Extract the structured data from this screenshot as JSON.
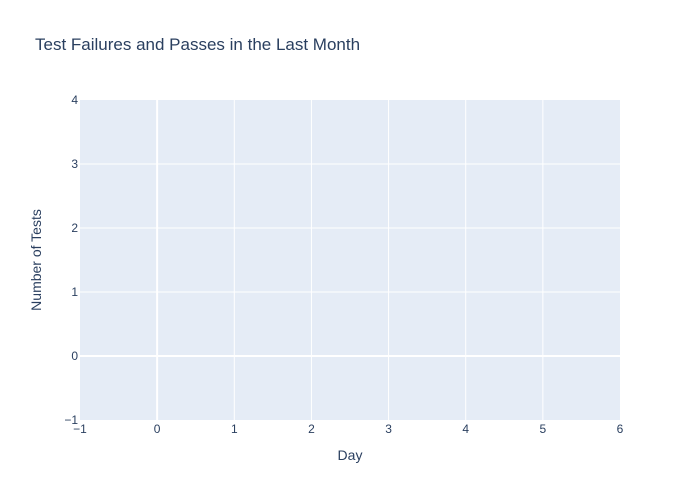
{
  "chart_data": {
    "type": "line",
    "title": "Test Failures and Passes in the Last Month",
    "xlabel": "Day",
    "ylabel": "Number of Tests",
    "xlim": [
      -1,
      6
    ],
    "ylim": [
      -1,
      4
    ],
    "x_ticks": [
      "−1",
      "0",
      "1",
      "2",
      "3",
      "4",
      "5",
      "6"
    ],
    "x_tick_values": [
      -1,
      0,
      1,
      2,
      3,
      4,
      5,
      6
    ],
    "y_ticks": [
      "−1",
      "0",
      "1",
      "2",
      "3",
      "4"
    ],
    "y_tick_values": [
      -1,
      0,
      1,
      2,
      3,
      4
    ],
    "grid": true,
    "series": []
  },
  "colors": {
    "plot_background": "#e5ecf6",
    "grid": "#ffffff",
    "text": "#2a3f5f"
  }
}
